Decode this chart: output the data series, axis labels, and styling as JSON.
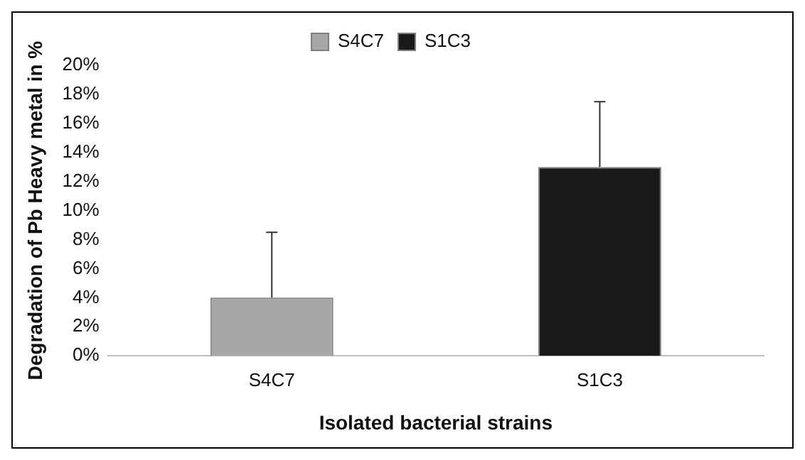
{
  "chart_data": {
    "type": "bar",
    "xlabel": "Isolated bacterial strains",
    "ylabel": "Degradation of Pb Heavy metal in %",
    "categories": [
      "S4C7",
      "S1C3"
    ],
    "series": [
      {
        "name": "S4C7",
        "color": "#a6a6a6",
        "values": [
          4,
          null
        ],
        "errors": [
          [
            4,
            8.5
          ],
          null
        ]
      },
      {
        "name": "S1C3",
        "color": "#1a1a1a",
        "values": [
          null,
          13
        ],
        "errors": [
          null,
          [
            13,
            17.5
          ]
        ]
      }
    ],
    "ylim": [
      0,
      20
    ],
    "yticks": [
      {
        "value": 0,
        "label": "0%"
      },
      {
        "value": 2,
        "label": "2%"
      },
      {
        "value": 4,
        "label": "4%"
      },
      {
        "value": 6,
        "label": "6%"
      },
      {
        "value": 8,
        "label": "8%"
      },
      {
        "value": 10,
        "label": "10%"
      },
      {
        "value": 12,
        "label": "12%"
      },
      {
        "value": 14,
        "label": "14%"
      },
      {
        "value": 16,
        "label": "16%"
      },
      {
        "value": 18,
        "label": "18%"
      },
      {
        "value": 20,
        "label": "20%"
      }
    ],
    "grid": false,
    "legend": "top"
  }
}
